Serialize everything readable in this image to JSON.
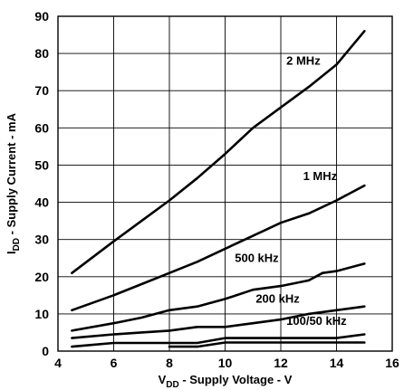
{
  "chart_data": {
    "type": "line",
    "xlabel": {
      "main": "V",
      "sub": "DD",
      "rest": " - Supply Voltage - V"
    },
    "ylabel": {
      "main": "I",
      "sub": "DD",
      "rest": " - Supply Current - mA"
    },
    "xlim": [
      4,
      16
    ],
    "ylim": [
      0,
      90
    ],
    "xticks": [
      4,
      6,
      8,
      10,
      12,
      14,
      16
    ],
    "yticks": [
      0,
      10,
      20,
      30,
      40,
      50,
      60,
      70,
      80,
      90
    ],
    "grid": true,
    "series": [
      {
        "name": "2 MHz",
        "x": [
          4.5,
          6,
          7,
          8,
          9,
          10,
          11,
          12,
          13,
          14,
          15
        ],
        "y": [
          21,
          29.5,
          35,
          40.5,
          46.5,
          53,
          60,
          65.5,
          71,
          77,
          86
        ]
      },
      {
        "name": "1 MHz",
        "x": [
          4.5,
          6,
          7,
          8,
          9,
          10,
          11,
          12,
          13,
          14,
          15
        ],
        "y": [
          11,
          15,
          18,
          21,
          24,
          27.5,
          31,
          34.5,
          37,
          40.5,
          44.5
        ]
      },
      {
        "name": "500 kHz",
        "x": [
          4.5,
          6,
          7,
          8,
          9,
          10,
          11,
          12,
          13,
          13.5,
          14,
          15
        ],
        "y": [
          5.5,
          7.5,
          9,
          11,
          12,
          14,
          16.5,
          17.5,
          19,
          21,
          21.5,
          23.5
        ]
      },
      {
        "name": "200 kHz",
        "x": [
          4.5,
          6,
          7,
          8,
          9,
          10,
          11,
          12,
          13,
          14,
          15
        ],
        "y": [
          3.5,
          4.5,
          5,
          5.5,
          6.5,
          6.5,
          7.5,
          8.5,
          10,
          11,
          12
        ]
      },
      {
        "name": "100 kHz",
        "x": [
          4.5,
          6,
          8,
          9,
          10,
          12,
          13,
          14,
          15
        ],
        "y": [
          1.2,
          2.2,
          2.2,
          2.2,
          3.5,
          3.5,
          3.5,
          3.5,
          4.5
        ]
      },
      {
        "name": "50 kHz",
        "x": [
          8,
          9,
          10,
          12,
          14,
          15
        ],
        "y": [
          1.2,
          1.2,
          2.3,
          2.3,
          2.3,
          2.3
        ]
      }
    ],
    "annotations": [
      {
        "text": "2 MHz",
        "x": 12.2,
        "y": 77
      },
      {
        "text": "1 MHz",
        "x": 12.8,
        "y": 46
      },
      {
        "text": "500 kHz",
        "x": 10.35,
        "y": 24
      },
      {
        "text": "200 kHz",
        "x": 11.1,
        "y": 13
      },
      {
        "text": "100/50 kHz",
        "x": 12.2,
        "y": 7
      }
    ]
  }
}
